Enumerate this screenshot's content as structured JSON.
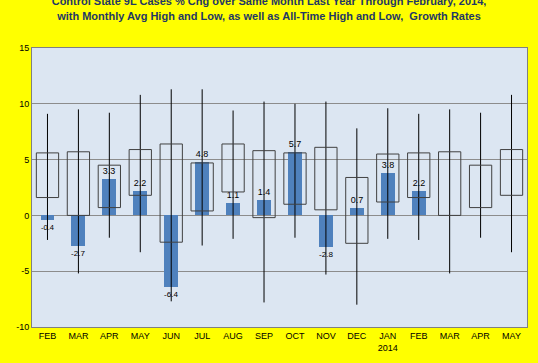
{
  "chart_data": {
    "type": "bar",
    "title": "Control State 9L Cases % Chg over Same Month Last Year Through February, 2014,\nwith Monthly Avg High and Low, as well as All-Time High and Low,  Growth Rates",
    "categories": [
      "FEB",
      "MAR",
      "APR",
      "MAY",
      "JUN",
      "JUL",
      "AUG",
      "SEP",
      "OCT",
      "NOV",
      "DEC",
      "JAN\n2014",
      "FEB",
      "MAR",
      "APR",
      "MAY"
    ],
    "values": [
      -0.4,
      -2.7,
      3.3,
      2.2,
      -6.4,
      4.8,
      1.1,
      1.4,
      5.7,
      -2.8,
      0.7,
      3.8,
      2.2,
      null,
      null,
      null
    ],
    "avg_low": [
      1.6,
      0.0,
      0.7,
      1.8,
      -2.4,
      0.4,
      2.1,
      -0.2,
      1.0,
      0.5,
      -2.5,
      1.2,
      1.6,
      0.0,
      0.7,
      1.8
    ],
    "avg_high": [
      5.6,
      5.7,
      4.5,
      5.9,
      6.4,
      4.7,
      6.4,
      5.8,
      5.6,
      6.1,
      3.4,
      5.5,
      5.6,
      5.7,
      4.5,
      5.9
    ],
    "alltime_low": [
      -2.2,
      -5.2,
      -2.0,
      -3.3,
      -7.7,
      -2.7,
      -2.1,
      -7.8,
      -2.0,
      -5.3,
      -8.0,
      -2.1,
      -2.2,
      -5.2,
      -2.0,
      -3.3
    ],
    "alltime_high": [
      9.1,
      9.5,
      9.2,
      10.8,
      11.3,
      11.3,
      9.4,
      10.2,
      10.0,
      10.2,
      7.8,
      9.6,
      9.1,
      9.5,
      9.2,
      10.8
    ],
    "color": "#4f81bd",
    "ylim": [
      -10,
      15
    ],
    "yticks": [
      -10,
      -5,
      0,
      5,
      10,
      15
    ],
    "grid": true,
    "data_labels": true
  }
}
